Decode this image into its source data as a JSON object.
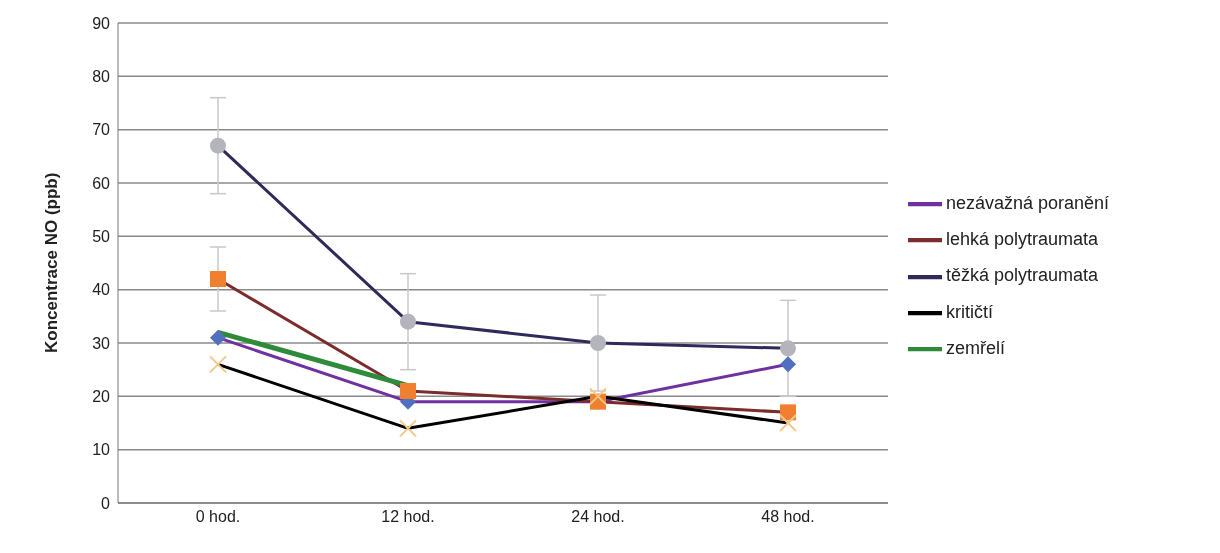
{
  "chart_data": {
    "type": "line",
    "ylabel": "Koncentrace NO (ppb)",
    "categories": [
      "0 hod.",
      "12 hod.",
      "24 hod.",
      "48 hod."
    ],
    "ylim": [
      0,
      90
    ],
    "yticks": [
      0,
      10,
      20,
      30,
      40,
      50,
      60,
      70,
      80,
      90
    ],
    "grid": "y",
    "legend": "right",
    "line_style": "solid",
    "series": [
      {
        "name": "nezávažná poranění",
        "color": "#7030a0",
        "marker": "diamond",
        "colors": [
          "#4f6fbf",
          "#4f6fbf",
          "#4f6fbf",
          "#4f6fbf"
        ],
        "values": [
          31,
          19,
          19,
          26
        ]
      },
      {
        "name": "lehká polytraumata",
        "color": "#7b2c2c",
        "marker": "square",
        "colors": [
          "#f07f2f",
          "#f07f2f",
          "#f07f2f",
          "#f07f2f"
        ],
        "values": [
          42,
          21,
          19,
          17
        ],
        "errors": [
          6,
          null,
          null,
          null
        ]
      },
      {
        "name": "těžká polytraumata",
        "color": "#2e2a5a",
        "marker": "circle",
        "colors": [
          "#b4b4bc",
          "#b4b4bc",
          "#b4b4bc",
          "#b4b4bc"
        ],
        "values": [
          67,
          34,
          30,
          29
        ],
        "errors": [
          9,
          9,
          9,
          9
        ]
      },
      {
        "name": "kritičtí",
        "color": "#000000",
        "marker": "cross",
        "colors": [
          "#f2c98a",
          "#f2c98a",
          "#f2c98a",
          "#f2c98a"
        ],
        "values": [
          26,
          14,
          20,
          15
        ]
      },
      {
        "name": "zemřelí",
        "color": "#2e8b3a",
        "marker": "none",
        "values": [
          32,
          22,
          null,
          null
        ]
      }
    ]
  }
}
